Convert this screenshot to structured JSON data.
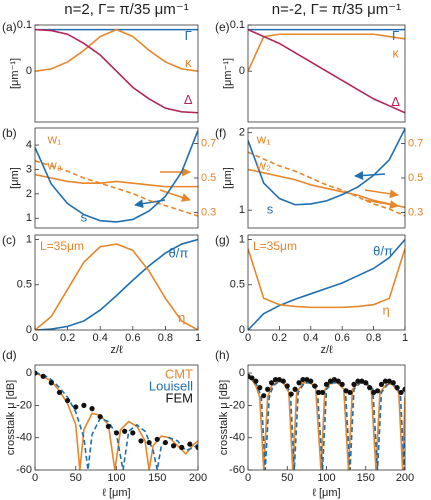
{
  "chart_data": [
    {
      "type": "line",
      "label": "(a)",
      "title": "n=2, Γ= π/35 μm⁻¹",
      "ylabel": "[μm⁻¹]",
      "x": [
        0,
        0.1,
        0.2,
        0.3,
        0.4,
        0.5,
        0.6,
        0.7,
        0.8,
        0.9,
        1
      ],
      "xlim": [
        0,
        1
      ],
      "ylim": [
        -0.11,
        0.1
      ],
      "yticks": [
        0,
        0.1
      ],
      "series": [
        {
          "name": "Γ",
          "color": "#1f6fb0",
          "values": [
            0.09,
            0.09,
            0.09,
            0.09,
            0.09,
            0.09,
            0.09,
            0.09,
            0.09,
            0.09,
            0.09
          ]
        },
        {
          "name": "κ",
          "color": "#e8862a",
          "values": [
            0,
            0.005,
            0.02,
            0.045,
            0.075,
            0.09,
            0.075,
            0.045,
            0.02,
            0.005,
            0
          ]
        },
        {
          "name": "Δ",
          "color": "#b5245a",
          "values": [
            0.09,
            0.088,
            0.08,
            0.06,
            0.035,
            0,
            -0.035,
            -0.06,
            -0.08,
            -0.088,
            -0.09
          ]
        }
      ]
    },
    {
      "type": "line",
      "label": "(b)",
      "ylabel": "[μm]",
      "x": [
        0,
        0.1,
        0.2,
        0.3,
        0.4,
        0.5,
        0.6,
        0.7,
        0.8,
        0.9,
        1
      ],
      "xlim": [
        0,
        1
      ],
      "ylim": [
        0.6,
        4.7
      ],
      "yticks": [
        1,
        2,
        3,
        4
      ],
      "y2lim": [
        0.21,
        0.79
      ],
      "y2ticks": [
        0.3,
        0.5,
        0.7
      ],
      "series": [
        {
          "name": "w₁",
          "color": "#e8862a",
          "axis": "y2",
          "dash": true,
          "values": [
            0.6,
            0.57,
            0.54,
            0.5,
            0.47,
            0.44,
            0.41,
            0.37,
            0.34,
            0.31,
            0.28
          ]
        },
        {
          "name": "w₂",
          "color": "#e8862a",
          "axis": "y2",
          "values": [
            0.52,
            0.5,
            0.48,
            0.47,
            0.47,
            0.48,
            0.47,
            0.46,
            0.45,
            0.45,
            0.45
          ]
        },
        {
          "name": "s",
          "color": "#1f6fb0",
          "values": [
            3.9,
            2.4,
            1.6,
            1.15,
            0.9,
            0.85,
            0.95,
            1.3,
            1.9,
            2.9,
            4.6
          ]
        }
      ]
    },
    {
      "type": "line",
      "label": "(c)",
      "xlabel": "z/ℓ",
      "annotation": "L=35μm",
      "x": [
        0,
        0.1,
        0.2,
        0.3,
        0.4,
        0.5,
        0.6,
        0.7,
        0.8,
        0.9,
        1
      ],
      "xlim": [
        0,
        1
      ],
      "xticks": [
        0,
        0.2,
        0.4,
        0.6,
        0.8,
        1
      ],
      "ylim": [
        0,
        1.05
      ],
      "yticks": [
        0,
        0.5,
        1
      ],
      "series": [
        {
          "name": "θ/π",
          "color": "#1f6fb0",
          "values": [
            0,
            0.01,
            0.04,
            0.1,
            0.22,
            0.38,
            0.55,
            0.71,
            0.85,
            0.95,
            1
          ]
        },
        {
          "name": "η",
          "color": "#e8862a",
          "values": [
            0,
            0.15,
            0.45,
            0.75,
            0.92,
            0.95,
            0.88,
            0.65,
            0.35,
            0.1,
            0
          ]
        }
      ]
    },
    {
      "type": "line",
      "label": "(d)",
      "ylabel": "crosstalk μ [dB]",
      "xlabel": "ℓ [μm]",
      "legend": "upper right",
      "xlim": [
        0,
        200
      ],
      "xticks": [
        0,
        50,
        100,
        150,
        200
      ],
      "ylim": [
        -60,
        5
      ],
      "yticks": [
        -60,
        -40,
        -20,
        0
      ],
      "series": [
        {
          "name": "CMT",
          "color": "#e8862a",
          "x": [
            0,
            10,
            20,
            30,
            40,
            50,
            55,
            60,
            70,
            80,
            90,
            98,
            105,
            115,
            125,
            135,
            140,
            145,
            155,
            165,
            175,
            185,
            195,
            200
          ],
          "values": [
            0,
            -2,
            -5,
            -11,
            -19,
            -32,
            -60,
            -35,
            -25,
            -26,
            -32,
            -60,
            -35,
            -30,
            -33,
            -42,
            -60,
            -45,
            -39,
            -40,
            -45,
            -50,
            -44,
            -42
          ]
        },
        {
          "name": "Louisell",
          "color": "#1f6fb0",
          "dash": true,
          "x": [
            0,
            10,
            20,
            30,
            40,
            50,
            60,
            65,
            70,
            80,
            90,
            100,
            108,
            115,
            125,
            135,
            145,
            150,
            155,
            165,
            175,
            185,
            195,
            200
          ],
          "values": [
            0,
            -1,
            -4,
            -9,
            -15,
            -24,
            -40,
            -60,
            -38,
            -28,
            -30,
            -38,
            -60,
            -36,
            -32,
            -36,
            -48,
            -60,
            -45,
            -40,
            -42,
            -48,
            -46,
            -44
          ]
        },
        {
          "name": "FEM",
          "color": "#111111",
          "marker": "o",
          "x": [
            0,
            10,
            20,
            30,
            40,
            50,
            60,
            70,
            80,
            90,
            100,
            110,
            120,
            130,
            140,
            150,
            160,
            170,
            180,
            190,
            200
          ],
          "values": [
            0,
            -2,
            -6,
            -12,
            -17,
            -21,
            -20,
            -22,
            -27,
            -33,
            -37,
            -36,
            -37,
            -42,
            -43,
            -41,
            -43,
            -45,
            -46,
            -44,
            -46
          ]
        }
      ]
    },
    {
      "type": "line",
      "label": "(e)",
      "title": "n=-2, Γ= π/35 μm⁻¹",
      "ylabel": "[μm⁻¹]",
      "x": [
        0,
        0.1,
        0.2,
        0.3,
        0.4,
        0.5,
        0.6,
        0.7,
        0.8,
        0.9,
        1
      ],
      "xlim": [
        0,
        1
      ],
      "ylim": [
        -0.11,
        0.1
      ],
      "yticks": [
        0,
        0.1
      ],
      "series": [
        {
          "name": "Γ",
          "color": "#1f6fb0",
          "values": [
            0.09,
            0.09,
            0.09,
            0.09,
            0.09,
            0.09,
            0.09,
            0.09,
            0.09,
            0.09,
            0.09
          ]
        },
        {
          "name": "κ",
          "color": "#e8862a",
          "values": [
            0,
            0.075,
            0.08,
            0.08,
            0.08,
            0.08,
            0.08,
            0.08,
            0.08,
            0.075,
            0.07
          ]
        },
        {
          "name": "Δ",
          "color": "#b5245a",
          "values": [
            0.09,
            0.075,
            0.06,
            0.04,
            0.02,
            0,
            -0.02,
            -0.04,
            -0.06,
            -0.075,
            -0.09
          ]
        }
      ]
    },
    {
      "type": "line",
      "label": "(f)",
      "ylabel": "[μm]",
      "x": [
        0,
        0.1,
        0.2,
        0.3,
        0.4,
        0.5,
        0.6,
        0.7,
        0.8,
        0.9,
        1
      ],
      "xlim": [
        0,
        1
      ],
      "ylim": [
        0.77,
        2.06
      ],
      "yticks": [
        1,
        2
      ],
      "y2lim": [
        0.21,
        0.79
      ],
      "y2ticks": [
        0.3,
        0.5,
        0.7
      ],
      "series": [
        {
          "name": "w₁",
          "color": "#e8862a",
          "axis": "y2",
          "dash": true,
          "values": [
            0.65,
            0.61,
            0.57,
            0.54,
            0.5,
            0.46,
            0.43,
            0.39,
            0.35,
            0.32,
            0.28
          ]
        },
        {
          "name": "w₂",
          "color": "#e8862a",
          "axis": "y2",
          "values": [
            0.55,
            0.53,
            0.51,
            0.49,
            0.46,
            0.44,
            0.42,
            0.4,
            0.37,
            0.35,
            0.33
          ]
        },
        {
          "name": "s",
          "color": "#1f6fb0",
          "values": [
            1.9,
            1.35,
            1.15,
            1.07,
            1.08,
            1.12,
            1.2,
            1.3,
            1.45,
            1.65,
            2.05
          ]
        }
      ]
    },
    {
      "type": "line",
      "label": "(g)",
      "xlabel": "z/ℓ",
      "annotation": "L=35μm",
      "x": [
        0,
        0.1,
        0.2,
        0.3,
        0.4,
        0.5,
        0.6,
        0.7,
        0.8,
        0.9,
        1
      ],
      "xlim": [
        0,
        1
      ],
      "xticks": [
        0,
        0.2,
        0.4,
        0.6,
        0.8,
        1
      ],
      "ylim": [
        0,
        1.05
      ],
      "yticks": [
        0,
        0.5,
        1
      ],
      "series": [
        {
          "name": "θ/π",
          "color": "#1f6fb0",
          "values": [
            0,
            0.18,
            0.27,
            0.34,
            0.4,
            0.46,
            0.52,
            0.6,
            0.68,
            0.8,
            1
          ]
        },
        {
          "name": "η",
          "color": "#e8862a",
          "values": [
            0.9,
            0.35,
            0.28,
            0.26,
            0.25,
            0.25,
            0.25,
            0.26,
            0.28,
            0.35,
            0.9
          ]
        }
      ]
    },
    {
      "type": "line",
      "label": "(h)",
      "ylabel": "crosstalk μ [dB]",
      "xlabel": "ℓ [μm]",
      "xlim": [
        0,
        200
      ],
      "xticks": [
        0,
        50,
        100,
        150,
        200
      ],
      "ylim": [
        -60,
        5
      ],
      "yticks": [
        -60,
        -40,
        -20,
        0
      ],
      "series": [
        {
          "color": "#e8862a",
          "x": [
            0,
            5,
            10,
            15,
            20,
            25,
            30,
            38,
            45,
            52,
            57,
            62,
            70,
            78,
            86,
            93,
            98,
            106,
            114,
            122,
            128,
            133,
            141,
            149,
            157,
            163,
            168,
            176,
            184,
            192,
            197,
            200
          ],
          "values": [
            -3,
            -4,
            -8,
            -15,
            -60,
            -15,
            -8,
            -5,
            -6,
            -12,
            -60,
            -12,
            -6,
            -6,
            -8,
            -60,
            -10,
            -6,
            -6,
            -10,
            -60,
            -10,
            -6,
            -6,
            -10,
            -60,
            -12,
            -7,
            -7,
            -12,
            -60,
            -15
          ]
        },
        {
          "color": "#1f6fb0",
          "dash": true,
          "x": [
            0,
            7,
            12,
            17,
            22,
            27,
            32,
            40,
            47,
            54,
            59,
            64,
            72,
            80,
            88,
            95,
            100,
            108,
            116,
            124,
            130,
            135,
            143,
            151,
            159,
            165,
            170,
            178,
            186,
            194,
            199,
            200
          ],
          "values": [
            -3,
            -4,
            -8,
            -15,
            -60,
            -15,
            -8,
            -5,
            -6,
            -12,
            -60,
            -12,
            -6,
            -6,
            -8,
            -60,
            -10,
            -6,
            -6,
            -10,
            -60,
            -10,
            -6,
            -6,
            -10,
            -60,
            -12,
            -7,
            -7,
            -12,
            -60,
            -40
          ]
        },
        {
          "color": "#111111",
          "marker": "o",
          "x": [
            0,
            5,
            10,
            15,
            20,
            25,
            30,
            35,
            40,
            45,
            50,
            55,
            60,
            65,
            70,
            75,
            80,
            85,
            90,
            95,
            100,
            105,
            110,
            115,
            120,
            125,
            130,
            135,
            140,
            145,
            150,
            155,
            160,
            165,
            170,
            175,
            180,
            185,
            190,
            195,
            200
          ],
          "values": [
            -2,
            -3,
            -5,
            -9,
            -14,
            -10,
            -6,
            -4,
            -4,
            -5,
            -8,
            -13,
            -10,
            -6,
            -4,
            -4,
            -5,
            -8,
            -12,
            -12,
            -7,
            -5,
            -4,
            -5,
            -7,
            -11,
            -12,
            -7,
            -5,
            -5,
            -6,
            -9,
            -12,
            -11,
            -7,
            -5,
            -5,
            -6,
            -9,
            -12,
            -10
          ]
        }
      ]
    }
  ]
}
